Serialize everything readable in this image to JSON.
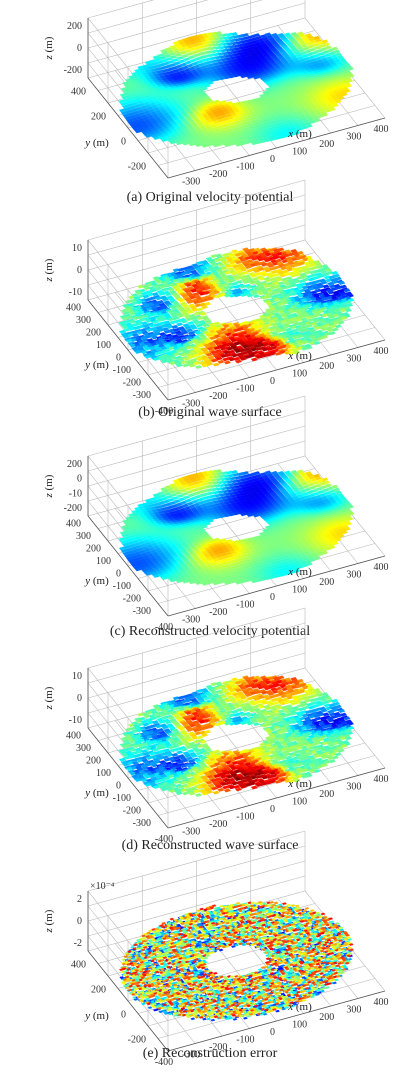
{
  "chart_data": [
    {
      "type": "surface",
      "caption": "(a) Original velocity potential",
      "xlabel": "x (m)",
      "ylabel": "y (m)",
      "zlabel": "z (m)",
      "x_ticks": [
        "-300",
        "-200",
        "-100",
        "0",
        "100",
        "200",
        "300",
        "400"
      ],
      "y_ticks": [
        "400",
        "200",
        "0",
        "-200"
      ],
      "z_ticks": [
        "200",
        "0",
        "-200"
      ],
      "x_range": [
        -400,
        400
      ],
      "y_range": [
        -400,
        400
      ],
      "z_range": [
        -200,
        200
      ],
      "z_multiplier": "",
      "pattern": "smooth",
      "seed": 3
    },
    {
      "type": "surface",
      "caption": "(b) Original wave surface",
      "xlabel": "x (m)",
      "ylabel": "y (m)",
      "zlabel": "z (m)",
      "x_ticks": [
        "-400",
        "-300",
        "-200",
        "-100",
        "0",
        "100",
        "200",
        "300",
        "400"
      ],
      "y_ticks": [
        "400",
        "300",
        "200",
        "100",
        "0",
        "-100",
        "-200",
        "-300"
      ],
      "z_ticks": [
        "10",
        "0",
        "-10"
      ],
      "x_range": [
        -400,
        400
      ],
      "y_range": [
        -400,
        400
      ],
      "z_range": [
        -10,
        10
      ],
      "z_multiplier": "",
      "pattern": "rough",
      "seed": 7
    },
    {
      "type": "surface",
      "caption": "(c) Reconstructed velocity potential",
      "xlabel": "x (m)",
      "ylabel": "y (m)",
      "zlabel": "z (m)",
      "x_ticks": [
        "-400",
        "-300",
        "-200",
        "-100",
        "0",
        "100",
        "200",
        "300",
        "400"
      ],
      "y_ticks": [
        "400",
        "300",
        "200",
        "100",
        "0",
        "-100",
        "-200",
        "-300"
      ],
      "z_ticks": [
        "200",
        "0",
        "-10",
        "-200"
      ],
      "x_range": [
        -400,
        400
      ],
      "y_range": [
        -400,
        400
      ],
      "z_range": [
        -200,
        200
      ],
      "z_multiplier": "",
      "pattern": "smooth",
      "seed": 3
    },
    {
      "type": "surface",
      "caption": "(d) Reconstructed wave surface",
      "xlabel": "x (m)",
      "ylabel": "y (m)",
      "zlabel": "z (m)",
      "x_ticks": [
        "-400",
        "-300",
        "-200",
        "-100",
        "0",
        "100",
        "200",
        "300",
        "400"
      ],
      "y_ticks": [
        "400",
        "300",
        "200",
        "100",
        "0",
        "-100",
        "-200",
        "-300"
      ],
      "z_ticks": [
        "10",
        "0",
        "-10"
      ],
      "x_range": [
        -400,
        400
      ],
      "y_range": [
        -400,
        400
      ],
      "z_range": [
        -10,
        10
      ],
      "z_multiplier": "",
      "pattern": "rough",
      "seed": 7
    },
    {
      "type": "surface",
      "caption": "(e) Reconstruction error",
      "xlabel": "x (m)",
      "ylabel": "y (m)",
      "zlabel": "z (m)",
      "x_ticks": [
        "-400",
        "-300",
        "-200",
        "-100",
        "0",
        "100",
        "200",
        "300",
        "400"
      ],
      "y_ticks": [
        "400",
        "200",
        "0",
        "-200"
      ],
      "z_ticks": [
        "2",
        "0",
        "-2"
      ],
      "x_range": [
        -400,
        400
      ],
      "y_range": [
        -400,
        400
      ],
      "z_range": [
        -2,
        2
      ],
      "z_multiplier": "×10⁻⁴",
      "pattern": "noise",
      "seed": 11
    }
  ]
}
